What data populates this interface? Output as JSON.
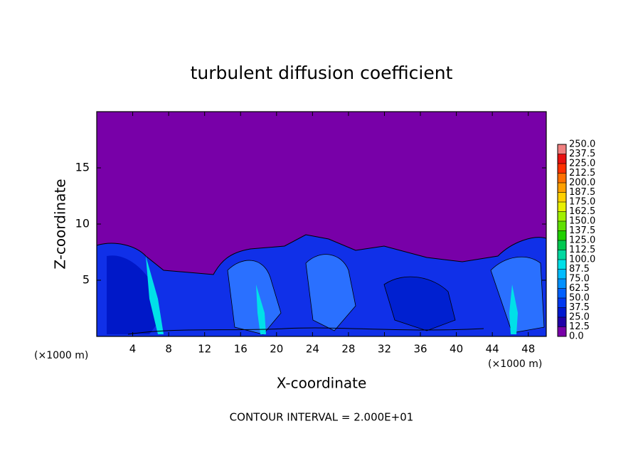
{
  "chart_data": {
    "type": "contour",
    "title": "turbulent diffusion coefficient",
    "x_label": "X-coordinate",
    "y_label": "Z-coordinate",
    "x_unit_label": "(×1000 m)",
    "footnote": "CONTOUR INTERVAL = 2.000E+01",
    "xlim": [
      0,
      50
    ],
    "xticks": [
      4,
      8,
      12,
      16,
      20,
      24,
      28,
      32,
      36,
      40,
      44,
      48
    ],
    "ylim": [
      0,
      20
    ],
    "yticks": [
      5,
      10,
      15
    ],
    "colorbar": {
      "levels": [
        {
          "value": 0,
          "label": "0.0"
        },
        12.5,
        {
          "value": 25,
          "label": "25.0"
        },
        37.5,
        {
          "value": 50,
          "label": "50.0"
        },
        62.5,
        {
          "value": 75,
          "label": "75.0"
        },
        87.5,
        {
          "value": 100,
          "label": "100.0"
        },
        112.5,
        {
          "value": 125,
          "label": "125.0"
        },
        137.5,
        {
          "value": 150,
          "label": "150.0"
        },
        162.5,
        {
          "value": 175,
          "label": "175.0"
        },
        187.5,
        {
          "value": 200,
          "label": "200.0"
        },
        212.5,
        {
          "value": 225,
          "label": "225.0"
        },
        237.5,
        {
          "value": 250,
          "label": "250.0"
        }
      ],
      "colors": [
        "#7800a8",
        "#2000a8",
        "#0018d0",
        "#0038f0",
        "#0060ff",
        "#0090ff",
        "#00bcff",
        "#00e0e8",
        "#00d8a0",
        "#00c850",
        "#20d000",
        "#60e000",
        "#a0f000",
        "#e8f000",
        "#ffd000",
        "#ffa000",
        "#ff7000",
        "#ff3000",
        "#e81010",
        "#f08080"
      ]
    }
  }
}
